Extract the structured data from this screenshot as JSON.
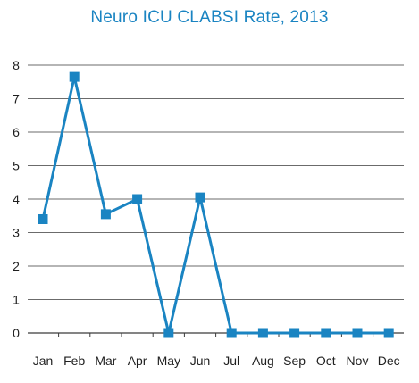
{
  "chart_data": {
    "type": "line",
    "title": "Neuro ICU CLABSI Rate, 2013",
    "xlabel": "",
    "ylabel": "",
    "categories": [
      "Jan",
      "Feb",
      "Mar",
      "Apr",
      "May",
      "Jun",
      "Jul",
      "Aug",
      "Sep",
      "Oct",
      "Nov",
      "Dec"
    ],
    "series": [
      {
        "values": [
          3.4,
          7.65,
          3.55,
          4.0,
          0,
          4.05,
          0,
          0,
          0,
          0,
          0,
          0
        ]
      }
    ],
    "ylim": [
      0,
      8
    ],
    "yticks": [
      "0",
      "1",
      "2",
      "3",
      "4",
      "5",
      "6",
      "7",
      "8"
    ],
    "grid": true,
    "legend": "none",
    "line_color": "#1a84c2",
    "grid_color": "#6b6b6b"
  }
}
